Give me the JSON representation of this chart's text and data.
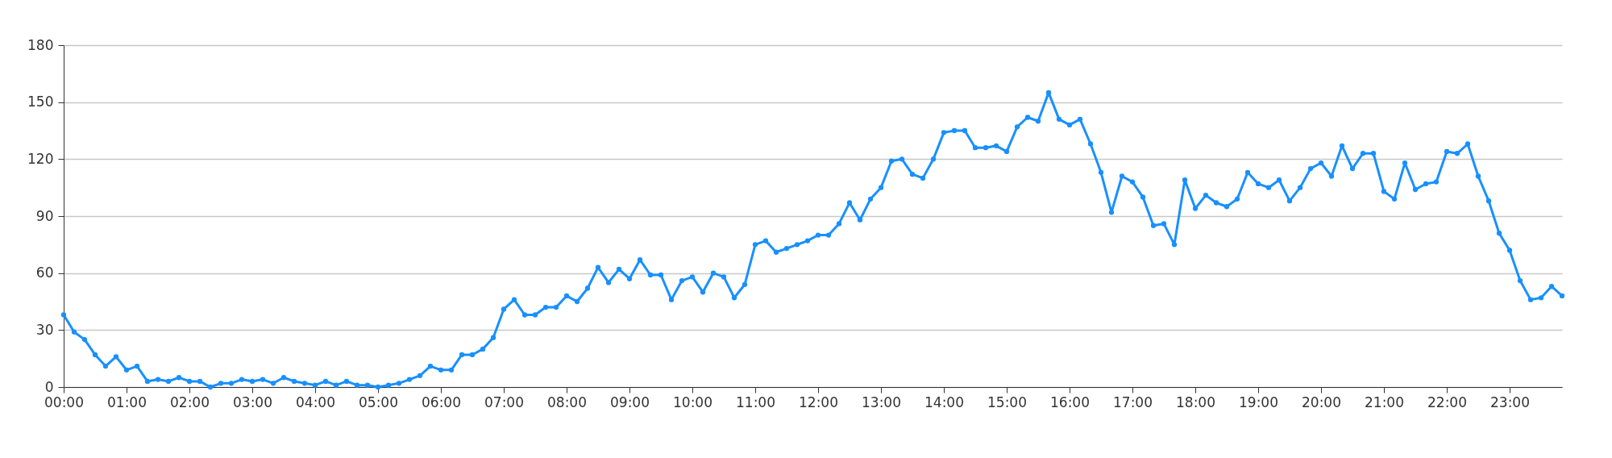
{
  "chart_data": {
    "type": "line",
    "x": [
      0,
      0.1667,
      0.3333,
      0.5,
      0.6667,
      0.8333,
      1,
      1.1667,
      1.3333,
      1.5,
      1.6667,
      1.8333,
      2,
      2.1667,
      2.3333,
      2.5,
      2.6667,
      2.8333,
      3,
      3.1667,
      3.3333,
      3.5,
      3.6667,
      3.8333,
      4,
      4.1667,
      4.3333,
      4.5,
      4.6667,
      4.8333,
      5,
      5.1667,
      5.3333,
      5.5,
      5.6667,
      5.8333,
      6,
      6.1667,
      6.3333,
      6.5,
      6.6667,
      6.8333,
      7,
      7.1667,
      7.3333,
      7.5,
      7.6667,
      7.8333,
      8,
      8.1667,
      8.3333,
      8.5,
      8.6667,
      8.8333,
      9,
      9.1667,
      9.3333,
      9.5,
      9.6667,
      9.8333,
      10,
      10.1667,
      10.3333,
      10.5,
      10.6667,
      10.8333,
      11,
      11.1667,
      11.3333,
      11.5,
      11.6667,
      11.8333,
      12,
      12.1667,
      12.3333,
      12.5,
      12.6667,
      12.8333,
      13,
      13.1667,
      13.3333,
      13.5,
      13.6667,
      13.8333,
      14,
      14.1667,
      14.3333,
      14.5,
      14.6667,
      14.8333,
      15,
      15.1667,
      15.3333,
      15.5,
      15.6667,
      15.8333,
      16,
      16.1667,
      16.3333,
      16.5,
      16.6667,
      16.8333,
      17,
      17.1667,
      17.3333,
      17.5,
      17.6667,
      17.8333,
      18,
      18.1667,
      18.3333,
      18.5,
      18.6667,
      18.8333,
      19,
      19.1667,
      19.3333,
      19.5,
      19.6667,
      19.8333,
      20,
      20.1667,
      20.3333,
      20.5,
      20.6667,
      20.8333,
      21,
      21.1667,
      21.3333,
      21.5,
      21.6667,
      21.8333,
      22,
      22.1667,
      22.3333,
      22.5,
      22.6667,
      22.8333,
      23,
      23.1667,
      23.3333,
      23.5,
      23.6667,
      23.8333
    ],
    "series": [
      {
        "color": "#1890ff",
        "values": [
          38,
          29,
          25,
          17,
          11,
          16,
          9,
          11,
          3,
          4,
          3,
          5,
          3,
          3,
          0,
          2,
          2,
          4,
          3,
          4,
          2,
          5,
          3,
          2,
          1,
          3,
          1,
          3,
          1,
          1,
          0,
          1,
          2,
          4,
          6,
          11,
          9,
          9,
          17,
          17,
          20,
          26,
          41,
          46,
          38,
          38,
          42,
          42,
          48,
          45,
          52,
          63,
          55,
          62,
          57,
          67,
          59,
          59,
          46,
          56,
          58,
          50,
          60,
          58,
          47,
          54,
          75,
          77,
          71,
          73,
          75,
          77,
          80,
          80,
          86,
          97,
          88,
          99,
          105,
          119,
          120,
          112,
          110,
          120,
          134,
          135,
          135,
          126,
          126,
          127,
          124,
          137,
          142,
          140,
          155,
          141,
          138,
          141,
          128,
          113,
          92,
          111,
          108,
          100,
          85,
          86,
          75,
          109,
          94,
          101,
          97,
          95,
          99,
          113,
          107,
          105,
          109,
          98,
          105,
          115,
          118,
          111,
          127,
          115,
          123,
          123,
          103,
          99,
          118,
          104,
          107,
          108,
          124,
          123,
          128,
          111,
          98,
          81,
          72,
          56,
          46,
          47,
          53,
          48
        ]
      }
    ],
    "xlim": [
      0,
      23.8333
    ],
    "xticks": [
      {
        "value": 0,
        "label": "00:00"
      },
      {
        "value": 1,
        "label": "01:00"
      },
      {
        "value": 2,
        "label": "02:00"
      },
      {
        "value": 3,
        "label": "03:00"
      },
      {
        "value": 4,
        "label": "04:00"
      },
      {
        "value": 5,
        "label": "05:00"
      },
      {
        "value": 6,
        "label": "06:00"
      },
      {
        "value": 7,
        "label": "07:00"
      },
      {
        "value": 8,
        "label": "08:00"
      },
      {
        "value": 9,
        "label": "09:00"
      },
      {
        "value": 10,
        "label": "10:00"
      },
      {
        "value": 11,
        "label": "11:00"
      },
      {
        "value": 12,
        "label": "12:00"
      },
      {
        "value": 13,
        "label": "13:00"
      },
      {
        "value": 14,
        "label": "14:00"
      },
      {
        "value": 15,
        "label": "15:00"
      },
      {
        "value": 16,
        "label": "16:00"
      },
      {
        "value": 17,
        "label": "17:00"
      },
      {
        "value": 18,
        "label": "18:00"
      },
      {
        "value": 19,
        "label": "19:00"
      },
      {
        "value": 20,
        "label": "20:00"
      },
      {
        "value": 21,
        "label": "21:00"
      },
      {
        "value": 22,
        "label": "22:00"
      },
      {
        "value": 23,
        "label": "23:00"
      }
    ],
    "ylim": [
      0,
      180
    ],
    "yticks": [
      0,
      30,
      60,
      90,
      120,
      150,
      180
    ],
    "grid": "y",
    "marker": "circle",
    "line_style": "solid"
  }
}
